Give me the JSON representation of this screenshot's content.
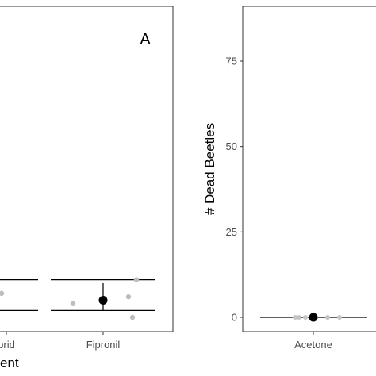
{
  "chart_data": [
    {
      "type": "scatter",
      "panel_label": "A",
      "xlabel": "ent",
      "ylabel": "",
      "categories": [
        "prid",
        "Fipronil"
      ],
      "grid": false,
      "series": [
        {
          "mean": [
            null,
            5
          ],
          "error_bars": [
            {
              "category": "prid",
              "lower": null,
              "upper": null
            },
            {
              "category": "Fipronil",
              "lower": 2,
              "upper": 10
            }
          ],
          "points": [
            {
              "category": "prid",
              "y": 7
            },
            {
              "category": "Fipronil",
              "y": 4
            },
            {
              "category": "Fipronil",
              "y": 6
            },
            {
              "category": "Fipronil",
              "y": 11
            },
            {
              "category": "Fipronil",
              "y": 5
            },
            {
              "category": "Fipronil",
              "y": 0
            }
          ]
        }
      ],
      "hlines": [
        {
          "y": 11
        },
        {
          "y": 2
        }
      ]
    },
    {
      "type": "scatter",
      "panel_label": "",
      "xlabel": "",
      "ylabel": "# Dead Beetles",
      "categories": [
        "Acetone"
      ],
      "yticks": [
        0,
        25,
        50,
        75
      ],
      "ylim": [
        -5,
        90
      ],
      "grid": false,
      "series": [
        {
          "mean": [
            0
          ],
          "error_bars": [
            {
              "category": "Acetone",
              "lower": 0,
              "upper": 0
            }
          ],
          "points": [
            {
              "category": "Acetone",
              "y": 0
            },
            {
              "category": "Acetone",
              "y": 0
            },
            {
              "category": "Acetone",
              "y": 0
            },
            {
              "category": "Acetone",
              "y": 0
            },
            {
              "category": "Acetone",
              "y": 0
            },
            {
              "category": "Acetone",
              "y": 0
            }
          ]
        }
      ]
    }
  ]
}
